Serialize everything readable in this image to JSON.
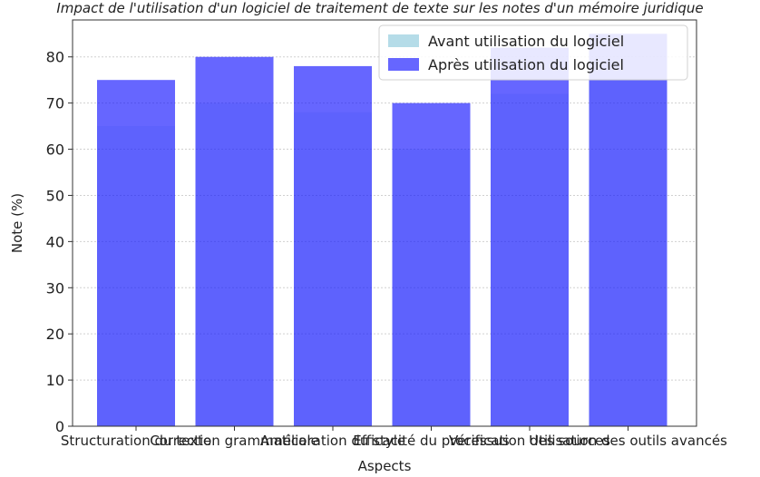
{
  "chart_data": {
    "type": "bar",
    "title": "Impact de l'utilisation d'un logiciel de traitement de texte sur les notes d'un mémoire juridique",
    "xlabel": "Aspects",
    "ylabel": "Note (%)",
    "ylim": [
      0,
      88
    ],
    "yticks": [
      0,
      10,
      20,
      30,
      40,
      50,
      60,
      70,
      80
    ],
    "categories": [
      "Structuration du texte",
      "Correction grammaticale",
      "Amélioration du style",
      "Efficacité du processus",
      "Vérification des sources",
      "Utilisation des outils avancés"
    ],
    "series": [
      {
        "name": "Avant utilisation du logiciel",
        "values": [
          65,
          70,
          68,
          60,
          72,
          75
        ],
        "color": "#add8e6"
      },
      {
        "name": "Après utilisation du logiciel",
        "values": [
          75,
          80,
          78,
          70,
          82,
          85
        ],
        "color": "#0000ff"
      }
    ],
    "grid": true,
    "legend_position": "top-right"
  }
}
